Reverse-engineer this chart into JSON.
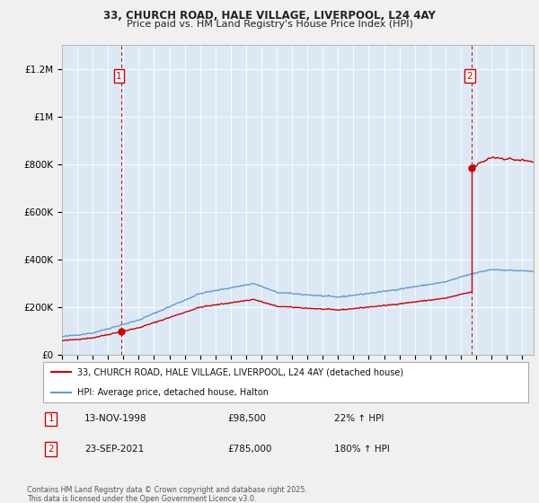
{
  "title": "33, CHURCH ROAD, HALE VILLAGE, LIVERPOOL, L24 4AY",
  "subtitle": "Price paid vs. HM Land Registry's House Price Index (HPI)",
  "ytick_labels": [
    "£0",
    "£200K",
    "£400K",
    "£600K",
    "£800K",
    "£1M",
    "£1.2M"
  ],
  "yticks": [
    0,
    200000,
    400000,
    600000,
    800000,
    1000000,
    1200000
  ],
  "ylim": [
    0,
    1300000
  ],
  "xlim_start": 1995.0,
  "xlim_end": 2025.75,
  "legend_line1": "33, CHURCH ROAD, HALE VILLAGE, LIVERPOOL, L24 4AY (detached house)",
  "legend_line2": "HPI: Average price, detached house, Halton",
  "label1_date": "13-NOV-1998",
  "label1_price": "£98,500",
  "label1_hpi": "22% ↑ HPI",
  "label2_date": "23-SEP-2021",
  "label2_price": "£785,000",
  "label2_hpi": "180% ↑ HPI",
  "footnote": "Contains HM Land Registry data © Crown copyright and database right 2025.\nThis data is licensed under the Open Government Licence v3.0.",
  "line_color_red": "#cc0000",
  "line_color_blue": "#6699cc",
  "plot_bg_color": "#dce9f5",
  "grid_color": "#ffffff",
  "fig_bg_color": "#f0f0f0",
  "sale1_x": 1998.87,
  "sale1_y": 98500,
  "sale2_x": 2021.73,
  "sale2_y": 785000
}
